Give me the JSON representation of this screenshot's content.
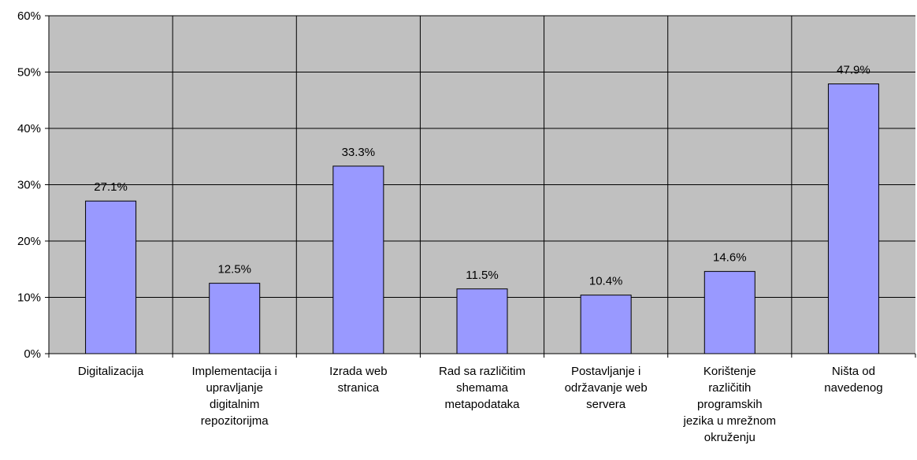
{
  "chart_data": {
    "type": "bar",
    "title": "",
    "xlabel": "",
    "ylabel": "",
    "ylim": [
      0,
      60
    ],
    "y_ticks": [
      0,
      10,
      20,
      30,
      40,
      50,
      60
    ],
    "y_tick_labels": [
      "0%",
      "10%",
      "20%",
      "30%",
      "40%",
      "50%",
      "60%"
    ],
    "grid": true,
    "legend": "none",
    "categories": [
      [
        "Digitalizacija"
      ],
      [
        "Implementacija i",
        "upravljanje",
        "digitalnim",
        "repozitorijma"
      ],
      [
        "Izrada web",
        "stranica"
      ],
      [
        "Rad sa različitim",
        "shemama",
        "metapodataka"
      ],
      [
        "Postavljanje i",
        "održavanje web",
        "servera"
      ],
      [
        "Korištenje",
        "različitih",
        "programskih",
        "jezika u mrežnom",
        "okruženju"
      ],
      [
        "Ništa od",
        "navedenog"
      ]
    ],
    "values": [
      27.1,
      12.5,
      33.3,
      11.5,
      10.4,
      14.6,
      47.9
    ],
    "data_labels": [
      "27.1%",
      "12.5%",
      "33.3%",
      "11.5%",
      "10.4%",
      "14.6%",
      "47.9%"
    ],
    "colors": {
      "plot_background": "#c0c0c0",
      "bar_fill": "#9999ff",
      "bar_stroke": "#000000",
      "gridline": "#000000"
    }
  }
}
